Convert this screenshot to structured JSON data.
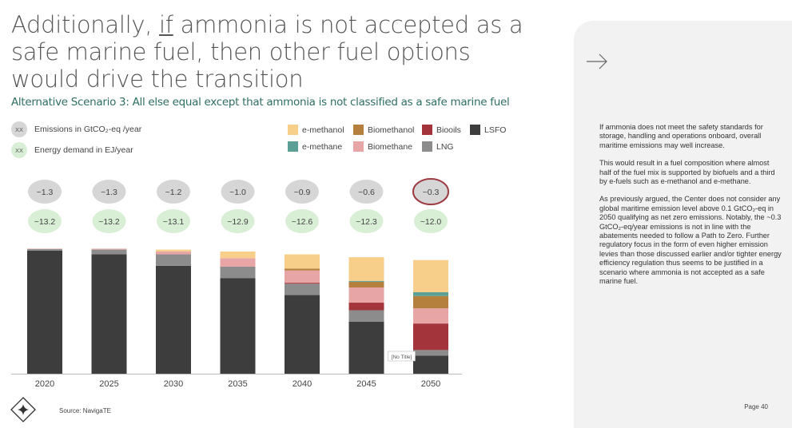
{
  "title": {
    "part1": "Additionally, ",
    "emph": "if",
    "part2": " ammonia is not accepted as a safe marine fuel, then other fuel options would drive the transition"
  },
  "subtitle": "Alternative Scenario 3: All else equal except that ammonia is not classified as a safe marine fuel",
  "legend_left": [
    {
      "badge": "XX",
      "label": "Emissions in GtCO₂-eq /year",
      "color": "#d6d6d6"
    },
    {
      "badge": "XX",
      "label": "Energy demand in EJ/year",
      "color": "#d8efd6"
    }
  ],
  "chart_data": {
    "type": "bar",
    "stacked": true,
    "categories": [
      "2020",
      "2025",
      "2030",
      "2035",
      "2040",
      "2045",
      "2050"
    ],
    "series": [
      {
        "name": "LSFO",
        "color": "#3d3d3d",
        "values": [
          13.0,
          12.6,
          11.4,
          10.1,
          8.3,
          5.5,
          1.9
        ]
      },
      {
        "name": "LNG",
        "color": "#8c8c8c",
        "values": [
          0.15,
          0.5,
          1.2,
          1.2,
          1.2,
          1.2,
          0.6
        ]
      },
      {
        "name": "Biooils",
        "color": "#a3343b",
        "values": [
          0,
          0,
          0,
          0,
          0.1,
          0.8,
          2.8
        ]
      },
      {
        "name": "Biomethane",
        "color": "#e8a5a5",
        "values": [
          0.05,
          0.1,
          0.3,
          0.9,
          1.3,
          1.6,
          1.6
        ]
      },
      {
        "name": "Biomethanol",
        "color": "#b5803e",
        "values": [
          0,
          0,
          0,
          0,
          0.2,
          0.6,
          1.3
        ]
      },
      {
        "name": "e-methane",
        "color": "#5c9f96",
        "values": [
          0,
          0,
          0,
          0,
          0,
          0.1,
          0.4
        ]
      },
      {
        "name": "e-methanol",
        "color": "#f7cf8b",
        "values": [
          0,
          0,
          0.2,
          0.7,
          1.5,
          2.5,
          3.4
        ]
      }
    ],
    "emissions": [
      "~1.3",
      "~1.3",
      "~1.2",
      "~1.0",
      "~0.9",
      "~0.6",
      "~0.3"
    ],
    "energy": [
      "~13.2",
      "~13.2",
      "~13.1",
      "~12.9",
      "~12.6",
      "~12.3",
      "~12.0"
    ],
    "highlight_index": 6,
    "ylim": [
      0,
      14.5
    ],
    "grid": false,
    "legend_position": "top-right",
    "annotation": "[No Title]"
  },
  "legend_order": [
    "e-methanol",
    "Biomethanol",
    "Biooils",
    "LSFO",
    "e-methane",
    "Biomethane",
    "LNG"
  ],
  "panel": {
    "p1": "If ammonia does not meet the safety standards for storage, handling and operations onboard, overall maritime emissions may well increase.",
    "p2": "This would result in a fuel composition where almost half of the fuel mix is supported by biofuels and a third by e-fuels such as e-methanol and e-methane.",
    "p3": "As previously argued, the Center does not consider any global maritime emission level above 0.1 GtCO₂-eq in 2050 qualifying as net zero emissions. Notably, the ~0.3 GtCO₂-eq/year emissions is not in line with the abatements needed to follow a Path to Zero. Further regulatory focus in the form of even higher emission levies than those discussed earlier and/or tighter energy efficiency regulation thus seems to be justified in a scenario where ammonia is not accepted as a safe marine fuel.",
    "page": "Page 40"
  },
  "source": "Source: NavigaTE",
  "icons": {
    "arrow": "arrow-right-icon",
    "logo": "diamond-star-logo"
  },
  "colors": {
    "emission_badge": "#d6d6d6",
    "energy_badge": "#d8efd6",
    "highlight_ring": "#9b3a3f",
    "subtitle": "#2f6f63"
  }
}
